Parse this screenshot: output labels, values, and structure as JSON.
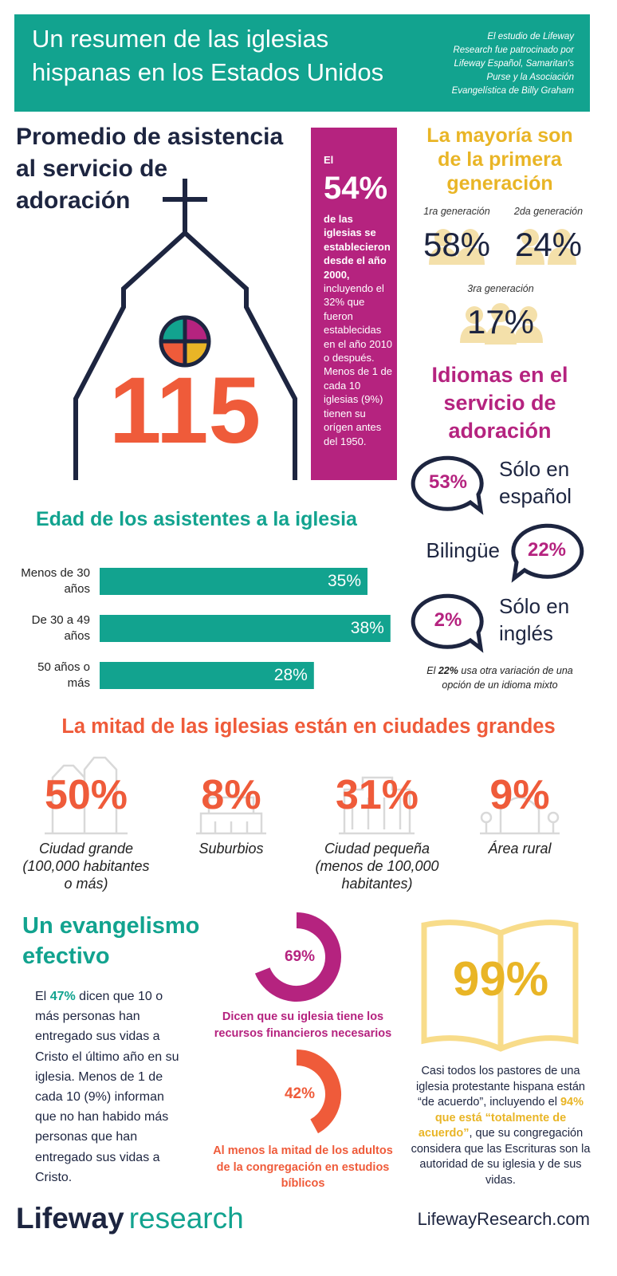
{
  "header": {
    "title": [
      "Un resumen de las iglesias",
      "hispanas en los Estados Unidos"
    ],
    "sponsor": [
      "El estudio de Lifeway",
      "Research fue patrocinado por",
      "Lifeway Español, Samaritan's",
      "Purse y la Asociación",
      "Evangelística de Billy Graham"
    ]
  },
  "attendance": {
    "title": [
      "Promedio de asistencia",
      "al servicio de",
      "adoración"
    ],
    "value": "115"
  },
  "established": {
    "intro": "El",
    "value": "54%",
    "bold_text": "de las iglesias se establecieron desde el año 2000,",
    "text": "incluyendo el 32% que fueron establecidas en el año 2010 o después. Menos de 1 de cada 10 iglesias (9%) tienen su orígen antes del 1950."
  },
  "generation": {
    "title": [
      "La mayoría son",
      "de la primera",
      "generación"
    ],
    "items": [
      {
        "label": "1ra generación",
        "value": "58%"
      },
      {
        "label": "2da generación",
        "value": "24%"
      },
      {
        "label": "3ra generación",
        "value": "17%"
      }
    ]
  },
  "languages": {
    "title": [
      "Idiomas en el",
      "servicio de",
      "adoración"
    ],
    "items": [
      {
        "value": "53%",
        "label": [
          "Sólo en",
          "español"
        ]
      },
      {
        "value": "22%",
        "label": [
          "Bilingüe"
        ]
      },
      {
        "value": "2%",
        "label": [
          "Sólo en",
          "inglés"
        ]
      }
    ],
    "note": {
      "before": "El",
      "bold": "22%",
      "after": "usa otra variación de una opción de un idioma mixto"
    }
  },
  "age": {
    "title": "Edad de los asistentes a la iglesia",
    "bars": [
      {
        "label": [
          "Menos de 30",
          "años"
        ],
        "value": 35,
        "value_label": "35%"
      },
      {
        "label": [
          "De 30 a 49",
          "años"
        ],
        "value": 38,
        "value_label": "38%"
      },
      {
        "label": [
          "50 años o",
          "más"
        ],
        "value": 28,
        "value_label": "28%"
      }
    ]
  },
  "cities": {
    "title": "La mitad de las iglesias están en ciudades grandes",
    "items": [
      {
        "value": "50%",
        "label": [
          "Ciudad grande",
          "(100,000 habitantes",
          "o más)"
        ]
      },
      {
        "value": "8%",
        "label": [
          "Suburbios"
        ]
      },
      {
        "value": "31%",
        "label": [
          "Ciudad pequeña",
          "(menos de 100,000",
          "habitantes)"
        ]
      },
      {
        "value": "9%",
        "label": [
          "Área rural"
        ]
      }
    ]
  },
  "evangelism": {
    "title": [
      "Un evangelismo",
      "efectivo"
    ],
    "paragraph": {
      "before": "El",
      "highlight": "47%",
      "after": "dicen que 10 o más personas han entregado sus vidas a Cristo el último año en su iglesia. Menos de 1 de cada 10 (9%) informan que no han habido más personas que han entregado sus vidas a Cristo."
    },
    "donuts": [
      {
        "value": 69,
        "value_label": "69%",
        "caption": "Dicen que su iglesia tiene los recursos financieros necesarios"
      },
      {
        "value": 42,
        "value_label": "42%",
        "caption": "Al menos la mitad de los adultos de la congregación en estudios bíblicos"
      }
    ],
    "scripture": {
      "value": "99%",
      "before": "Casi todos los pastores de una iglesia protestante hispana están “de acuerdo”, incluyendo el",
      "highlight": "94% que está “totalmente de acuerdo”",
      "after": ", que su congregación considera que las Escrituras son la autoridad de su iglesia y de sus vidas."
    }
  },
  "footer": {
    "logo_1": "Lifeway",
    "logo_2": "research",
    "url": "LifewayResearch.com"
  }
}
